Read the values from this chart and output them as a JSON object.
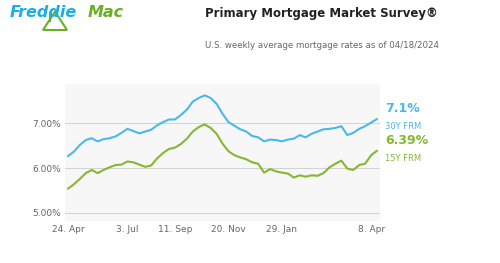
{
  "title": "Primary Mortgage Market Survey®",
  "subtitle": "U.S. weekly average mortgage rates as of 04/18/2024",
  "bg_color": "#ffffff",
  "plot_bg_color": "#f7f7f7",
  "line30_color": "#4ab8e8",
  "line15_color": "#85b830",
  "label30_value": "7.1%",
  "label30_name": "30Y FRM",
  "label15_value": "6.39%",
  "label15_name": "15Y FRM",
  "yticks": [
    5.0,
    6.0,
    7.0
  ],
  "ytick_labels": [
    "5.00%",
    "6.00%",
    "7.00%"
  ],
  "ylim": [
    4.82,
    7.88
  ],
  "xtick_labels": [
    "24. Apr",
    "3. Jul",
    "11. Sep",
    "20. Nov",
    "29. Jan",
    "8. Apr"
  ],
  "xtick_positions": [
    0,
    10,
    18,
    27,
    36,
    51
  ],
  "freddie_blue": "#1aaee8",
  "freddie_green": "#6ab020",
  "x30": [
    0,
    1,
    2,
    3,
    4,
    5,
    6,
    7,
    8,
    9,
    10,
    11,
    12,
    13,
    14,
    15,
    16,
    17,
    18,
    19,
    20,
    21,
    22,
    23,
    24,
    25,
    26,
    27,
    28,
    29,
    30,
    31,
    32,
    33,
    34,
    35,
    36,
    37,
    38,
    39,
    40,
    41,
    42,
    43,
    44,
    45,
    46,
    47,
    48,
    49,
    50,
    51,
    52
  ],
  "y30": [
    6.27,
    6.37,
    6.52,
    6.63,
    6.67,
    6.6,
    6.65,
    6.67,
    6.71,
    6.79,
    6.88,
    6.83,
    6.78,
    6.82,
    6.86,
    6.96,
    7.03,
    7.09,
    7.09,
    7.19,
    7.31,
    7.49,
    7.57,
    7.63,
    7.57,
    7.44,
    7.22,
    7.03,
    6.95,
    6.87,
    6.82,
    6.72,
    6.69,
    6.6,
    6.64,
    6.63,
    6.6,
    6.64,
    6.66,
    6.74,
    6.69,
    6.77,
    6.82,
    6.87,
    6.88,
    6.9,
    6.94,
    6.74,
    6.79,
    6.88,
    6.94,
    7.02,
    7.1
  ],
  "y15": [
    5.54,
    5.64,
    5.76,
    5.89,
    5.96,
    5.89,
    5.96,
    6.02,
    6.07,
    6.08,
    6.15,
    6.13,
    6.08,
    6.03,
    6.06,
    6.22,
    6.34,
    6.43,
    6.46,
    6.54,
    6.66,
    6.82,
    6.92,
    6.98,
    6.9,
    6.77,
    6.55,
    6.38,
    6.29,
    6.24,
    6.2,
    6.13,
    6.1,
    5.9,
    5.98,
    5.93,
    5.9,
    5.88,
    5.79,
    5.84,
    5.81,
    5.84,
    5.83,
    5.89,
    6.02,
    6.1,
    6.17,
    5.99,
    5.96,
    6.07,
    6.1,
    6.29,
    6.39
  ]
}
